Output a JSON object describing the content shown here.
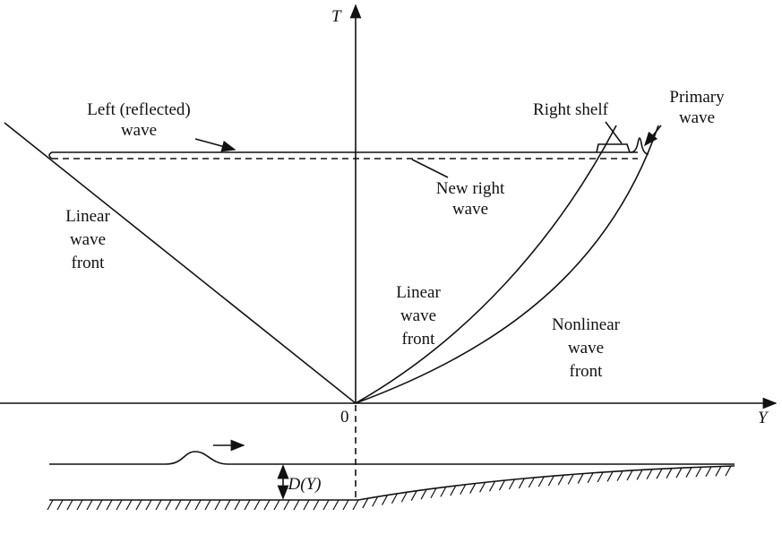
{
  "axes": {
    "t": "T",
    "y": "Y",
    "origin": "0"
  },
  "labels": {
    "left_wave": [
      "Left (reflected)",
      "wave"
    ],
    "right_shelf": [
      "Right shelf"
    ],
    "primary_wave": [
      "Primary",
      "wave"
    ],
    "new_right_wave": [
      "New right",
      "wave"
    ],
    "left_linear_front": [
      "Linear",
      "wave",
      "front"
    ],
    "right_linear_front": [
      "Linear",
      "wave",
      "front"
    ],
    "nonlinear_front": [
      "Nonlinear",
      "wave",
      "front"
    ],
    "depth": [
      "D(Y)"
    ]
  }
}
